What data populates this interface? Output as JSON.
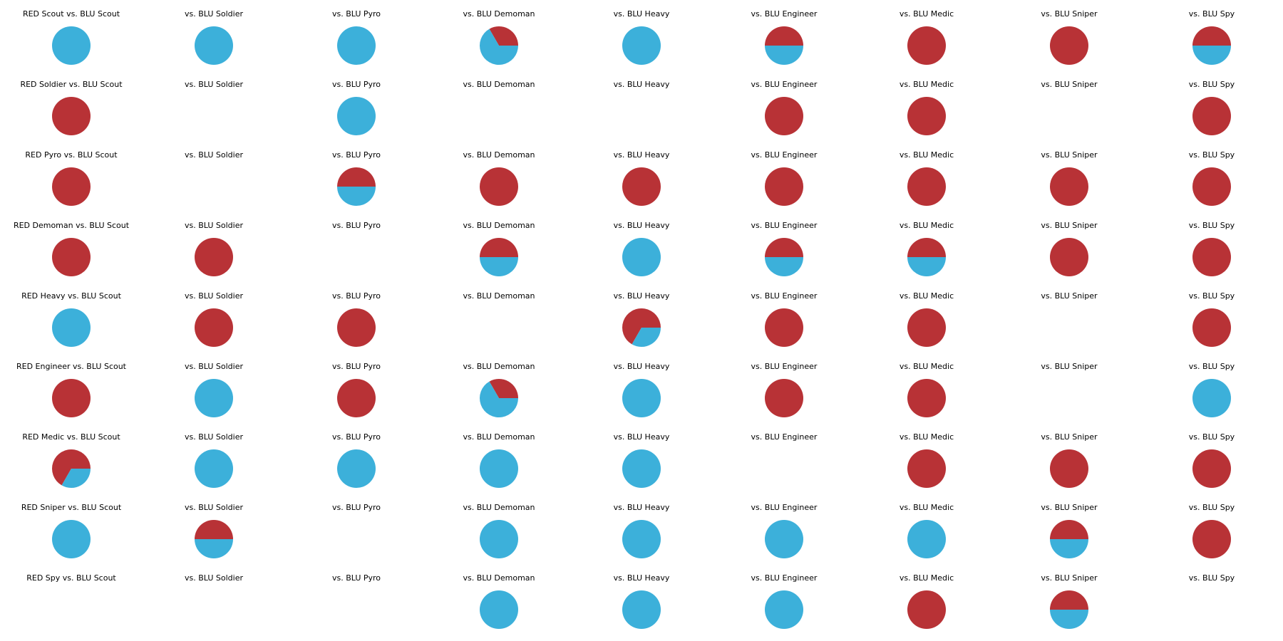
{
  "colors": {
    "red": "#b83236",
    "blu": "#3cb0da"
  },
  "red_classes": [
    "Scout",
    "Soldier",
    "Pyro",
    "Demoman",
    "Heavy",
    "Engineer",
    "Medic",
    "Sniper",
    "Spy"
  ],
  "blu_classes": [
    "Scout",
    "Soldier",
    "Pyro",
    "Demoman",
    "Heavy",
    "Engineer",
    "Medic",
    "Sniper",
    "Spy"
  ],
  "chart_data": {
    "type": "pie",
    "series": [
      "RED",
      "BLU"
    ],
    "titles": [
      [
        "RED Scout vs. BLU Scout",
        "vs. BLU Soldier",
        "vs. BLU Pyro",
        "vs. BLU Demoman",
        "vs. BLU Heavy",
        "vs. BLU Engineer",
        "vs. BLU Medic",
        "vs. BLU Sniper",
        "vs. BLU Spy"
      ],
      [
        "RED Soldier vs. BLU Scout",
        "vs. BLU Soldier",
        "vs. BLU Pyro",
        "vs. BLU Demoman",
        "vs. BLU Heavy",
        "vs. BLU Engineer",
        "vs. BLU Medic",
        "vs. BLU Sniper",
        "vs. BLU Spy"
      ],
      [
        "RED Pyro vs. BLU Scout",
        "vs. BLU Soldier",
        "vs. BLU Pyro",
        "vs. BLU Demoman",
        "vs. BLU Heavy",
        "vs. BLU Engineer",
        "vs. BLU Medic",
        "vs. BLU Sniper",
        "vs. BLU Spy"
      ],
      [
        "RED Demoman vs. BLU Scout",
        "vs. BLU Soldier",
        "vs. BLU Pyro",
        "vs. BLU Demoman",
        "vs. BLU Heavy",
        "vs. BLU Engineer",
        "vs. BLU Medic",
        "vs. BLU Sniper",
        "vs. BLU Spy"
      ],
      [
        "RED Heavy vs. BLU Scout",
        "vs. BLU Soldier",
        "vs. BLU Pyro",
        "vs. BLU Demoman",
        "vs. BLU Heavy",
        "vs. BLU Engineer",
        "vs. BLU Medic",
        "vs. BLU Sniper",
        "vs. BLU Spy"
      ],
      [
        "RED Engineer vs. BLU Scout",
        "vs. BLU Soldier",
        "vs. BLU Pyro",
        "vs. BLU Demoman",
        "vs. BLU Heavy",
        "vs. BLU Engineer",
        "vs. BLU Medic",
        "vs. BLU Sniper",
        "vs. BLU Spy"
      ],
      [
        "RED Medic vs. BLU Scout",
        "vs. BLU Soldier",
        "vs. BLU Pyro",
        "vs. BLU Demoman",
        "vs. BLU Heavy",
        "vs. BLU Engineer",
        "vs. BLU Medic",
        "vs. BLU Sniper",
        "vs. BLU Spy"
      ],
      [
        "RED Sniper vs. BLU Scout",
        "vs. BLU Soldier",
        "vs. BLU Pyro",
        "vs. BLU Demoman",
        "vs. BLU Heavy",
        "vs. BLU Engineer",
        "vs. BLU Medic",
        "vs. BLU Sniper",
        "vs. BLU Spy"
      ],
      [
        "RED Spy vs. BLU Scout",
        "vs. BLU Soldier",
        "vs. BLU Pyro",
        "vs. BLU Demoman",
        "vs. BLU Heavy",
        "vs. BLU Engineer",
        "vs. BLU Medic",
        "vs. BLU Sniper",
        "vs. BLU Spy"
      ]
    ],
    "red_share": [
      [
        0,
        0,
        0,
        0.333,
        0,
        0.5,
        1,
        1,
        0.5
      ],
      [
        1,
        null,
        0,
        null,
        null,
        1,
        1,
        null,
        1
      ],
      [
        1,
        null,
        0.5,
        1,
        1,
        1,
        1,
        1,
        1
      ],
      [
        1,
        1,
        null,
        0.5,
        0,
        0.5,
        0.5,
        1,
        1
      ],
      [
        0,
        1,
        1,
        null,
        0.667,
        1,
        1,
        null,
        1
      ],
      [
        1,
        0,
        1,
        0.333,
        0,
        1,
        1,
        null,
        0
      ],
      [
        0.667,
        0,
        0,
        0,
        0,
        null,
        1,
        1,
        1
      ],
      [
        0,
        0.5,
        null,
        0,
        0,
        0,
        0,
        0.5,
        1
      ],
      [
        null,
        null,
        null,
        0,
        0,
        0,
        1,
        0.5,
        null
      ]
    ]
  }
}
